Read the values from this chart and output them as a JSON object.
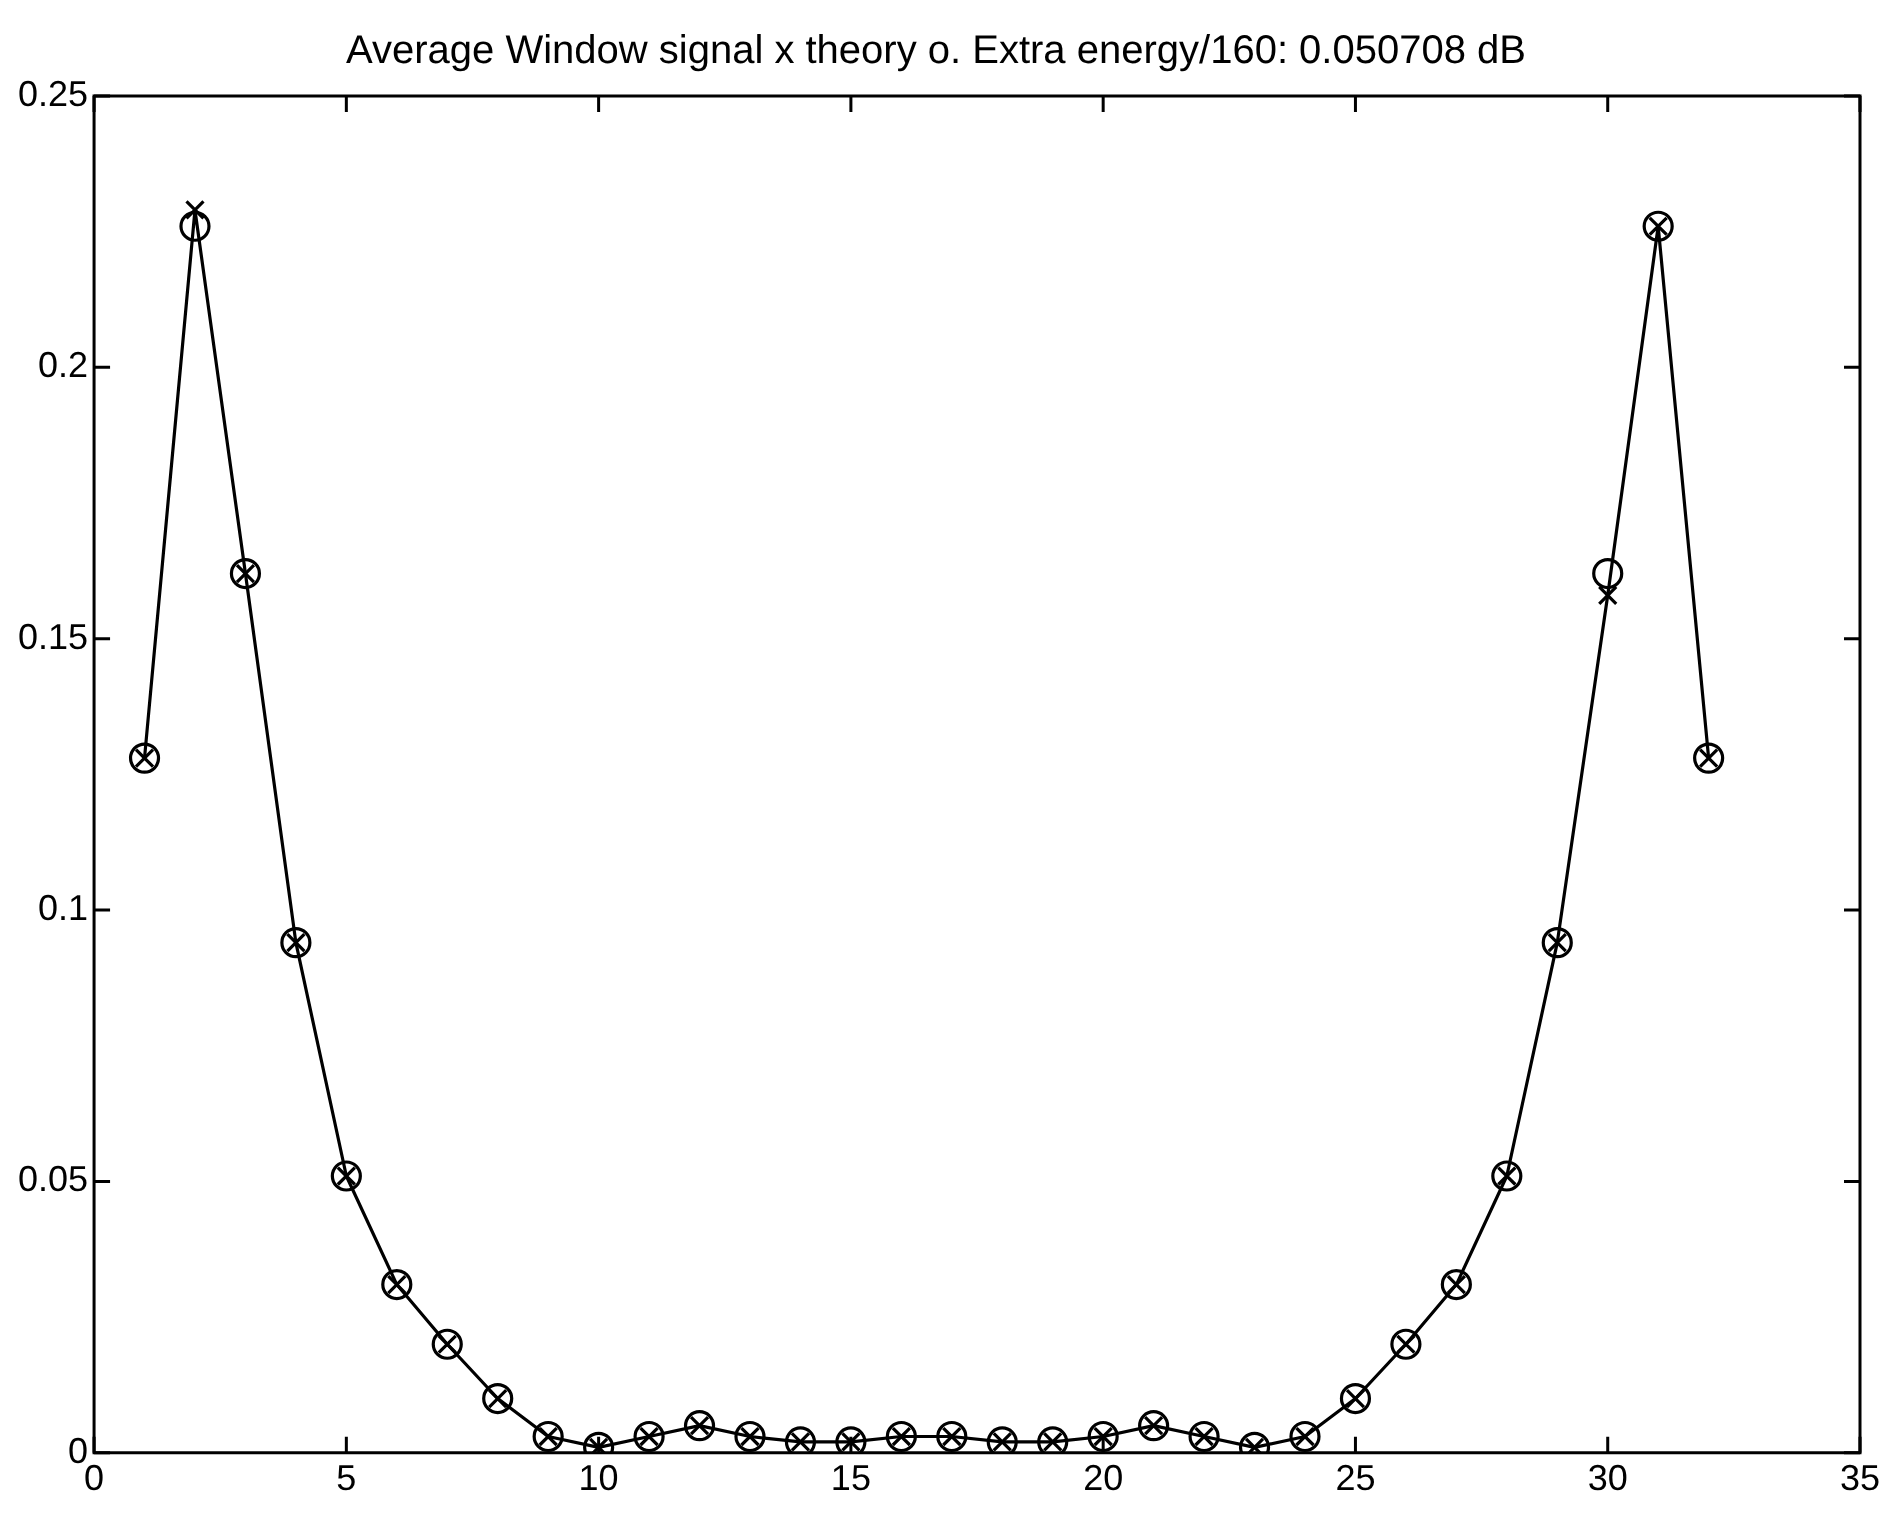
{
  "chart_data": {
    "type": "line",
    "title": "Average Window signal x theory o. Extra energy/160: 0.050708 dB",
    "x": [
      1,
      2,
      3,
      4,
      5,
      6,
      7,
      8,
      9,
      10,
      11,
      12,
      13,
      14,
      15,
      16,
      17,
      18,
      19,
      20,
      21,
      22,
      23,
      24,
      25,
      26,
      27,
      28,
      29,
      30,
      31,
      32
    ],
    "xlim": [
      0,
      35
    ],
    "xticks": [
      0,
      5,
      10,
      15,
      20,
      25,
      30,
      35
    ],
    "ylim": [
      0,
      0.25
    ],
    "yticks": [
      0,
      0.05,
      0.1,
      0.15,
      0.2,
      0.25
    ],
    "series": [
      {
        "type": "line",
        "marker": "cross",
        "color": "#000000",
        "values": [
          0.128,
          0.229,
          0.162,
          0.094,
          0.051,
          0.031,
          0.02,
          0.01,
          0.003,
          0.001,
          0.003,
          0.005,
          0.003,
          0.002,
          0.002,
          0.003,
          0.003,
          0.002,
          0.002,
          0.003,
          0.005,
          0.003,
          0.001,
          0.003,
          0.01,
          0.02,
          0.031,
          0.051,
          0.094,
          0.158,
          0.226,
          0.128
        ]
      },
      {
        "type": "scatter",
        "marker": "circle",
        "color": "#000000",
        "values": [
          0.128,
          0.226,
          0.162,
          0.094,
          0.051,
          0.031,
          0.02,
          0.01,
          0.003,
          0.001,
          0.003,
          0.005,
          0.003,
          0.002,
          0.002,
          0.003,
          0.003,
          0.002,
          0.002,
          0.003,
          0.005,
          0.003,
          0.001,
          0.003,
          0.01,
          0.02,
          0.031,
          0.051,
          0.094,
          0.162,
          0.226,
          0.128
        ]
      }
    ]
  }
}
